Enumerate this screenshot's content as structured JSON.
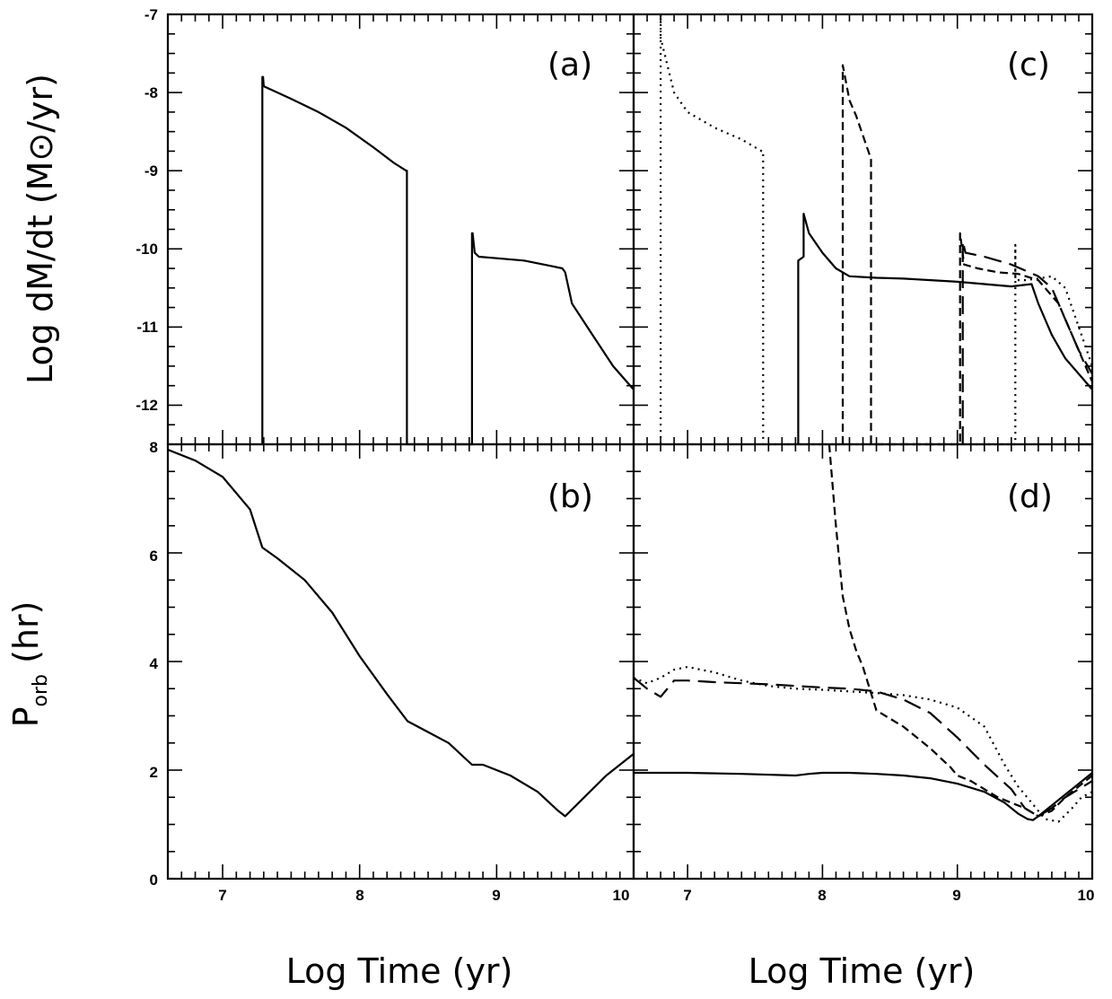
{
  "chart_data": [
    {
      "type": "line",
      "panel": "a",
      "label": "(a)",
      "xlim": [
        6.6,
        10
      ],
      "ylim": [
        -12.5,
        -7
      ],
      "series": [
        {
          "name": "solid",
          "style": "solid",
          "x": [
            7.29,
            7.29,
            7.295,
            7.3,
            7.5,
            7.7,
            7.9,
            8.1,
            8.25,
            8.34,
            8.345,
            8.345,
            8.82,
            8.82,
            8.825,
            8.84,
            8.87,
            9.0,
            9.2,
            9.4,
            9.48,
            9.5,
            9.55,
            9.7,
            9.85,
            10.0
          ],
          "y": [
            -12.5,
            -7.8,
            -7.8,
            -7.92,
            -8.08,
            -8.25,
            -8.45,
            -8.7,
            -8.9,
            -9.0,
            -9.0,
            -12.5,
            -12.5,
            -9.8,
            -9.8,
            -10.05,
            -10.1,
            -10.12,
            -10.15,
            -10.22,
            -10.25,
            -10.3,
            -10.7,
            -11.1,
            -11.5,
            -11.8
          ]
        }
      ]
    },
    {
      "type": "line",
      "panel": "b",
      "label": "(b)",
      "xlim": [
        6.6,
        10
      ],
      "ylim": [
        0,
        8
      ],
      "series": [
        {
          "name": "solid",
          "style": "solid",
          "x": [
            6.6,
            6.8,
            7.0,
            7.2,
            7.29,
            7.4,
            7.6,
            7.8,
            8.0,
            8.2,
            8.35,
            8.5,
            8.65,
            8.82,
            8.9,
            9.1,
            9.3,
            9.45,
            9.5,
            9.6,
            9.8,
            10.0
          ],
          "y": [
            7.9,
            7.7,
            7.4,
            6.8,
            6.1,
            5.9,
            5.5,
            4.9,
            4.1,
            3.4,
            2.9,
            2.7,
            2.5,
            2.1,
            2.1,
            1.9,
            1.6,
            1.25,
            1.15,
            1.4,
            1.9,
            2.3
          ]
        }
      ]
    },
    {
      "type": "line",
      "panel": "c",
      "label": "(c)",
      "xlim": [
        6.6,
        10
      ],
      "ylim": [
        -12.5,
        -7
      ],
      "series": [
        {
          "name": "dotted",
          "style": "dotted",
          "x": [
            6.8,
            6.8,
            6.8,
            6.9,
            7.0,
            7.2,
            7.4,
            7.55,
            7.56,
            7.56,
            9.43,
            9.43,
            9.43,
            9.5,
            9.6,
            9.7,
            9.8,
            9.9,
            10.0
          ],
          "y": [
            -12.5,
            -7.0,
            -7.3,
            -8.0,
            -8.25,
            -8.45,
            -8.6,
            -8.75,
            -8.75,
            -12.5,
            -12.5,
            -9.95,
            -10.4,
            -10.4,
            -10.38,
            -10.35,
            -10.5,
            -11.0,
            -11.5
          ]
        },
        {
          "name": "short dashed",
          "style": "short-dash",
          "x": [
            8.15,
            8.15,
            8.2,
            8.25,
            8.3,
            8.35,
            8.36,
            8.36,
            9.02,
            9.02,
            9.05,
            9.15,
            9.3,
            9.45,
            9.6,
            9.75,
            9.85,
            9.95,
            10.0
          ],
          "y": [
            -12.5,
            -7.65,
            -8.1,
            -8.3,
            -8.55,
            -8.8,
            -8.85,
            -12.5,
            -12.5,
            -9.8,
            -10.2,
            -10.25,
            -10.3,
            -10.32,
            -10.4,
            -10.7,
            -11.1,
            -11.5,
            -11.7
          ]
        },
        {
          "name": "solid",
          "style": "solid",
          "x": [
            7.82,
            7.82,
            7.86,
            7.86,
            7.9,
            8.0,
            8.1,
            8.2,
            8.4,
            8.6,
            8.8,
            9.0,
            9.2,
            9.4,
            9.55,
            9.6,
            9.7,
            9.8,
            9.9,
            10.0
          ],
          "y": [
            -12.5,
            -10.15,
            -10.1,
            -9.55,
            -9.8,
            -10.05,
            -10.25,
            -10.35,
            -10.37,
            -10.38,
            -10.4,
            -10.42,
            -10.45,
            -10.48,
            -10.45,
            -10.7,
            -11.1,
            -11.4,
            -11.6,
            -11.8
          ]
        },
        {
          "name": "long dashed",
          "style": "long-dash",
          "x": [
            9.04,
            9.04,
            9.06,
            9.2,
            9.4,
            9.6,
            9.7,
            9.8,
            9.9,
            10.0
          ],
          "y": [
            -12.5,
            -9.9,
            -10.05,
            -10.1,
            -10.2,
            -10.35,
            -10.5,
            -10.9,
            -11.3,
            -11.6
          ]
        }
      ]
    },
    {
      "type": "line",
      "panel": "d",
      "label": "(d)",
      "xlim": [
        6.6,
        10
      ],
      "ylim": [
        0,
        8
      ],
      "series": [
        {
          "name": "short dashed",
          "style": "short-dash",
          "x": [
            8.05,
            8.1,
            8.15,
            8.2,
            8.25,
            8.3,
            8.35,
            8.4,
            8.6,
            8.8,
            8.95,
            9.0,
            9.1,
            9.3,
            9.5,
            9.6,
            9.7,
            9.8,
            9.9,
            10.0
          ],
          "y": [
            8.0,
            6.5,
            5.2,
            4.6,
            4.2,
            3.9,
            3.5,
            3.1,
            2.8,
            2.4,
            2.05,
            1.9,
            1.8,
            1.5,
            1.3,
            1.15,
            1.25,
            1.5,
            1.7,
            1.9
          ]
        },
        {
          "name": "dotted",
          "style": "dotted",
          "x": [
            6.6,
            6.7,
            6.8,
            6.9,
            7.0,
            7.1,
            7.2,
            7.4,
            7.6,
            7.8,
            8.0,
            8.2,
            8.4,
            8.6,
            8.8,
            9.0,
            9.2,
            9.35,
            9.45,
            9.55,
            9.65,
            9.75,
            9.85,
            9.92,
            10.0
          ],
          "y": [
            3.7,
            3.6,
            3.7,
            3.85,
            3.9,
            3.85,
            3.8,
            3.65,
            3.55,
            3.5,
            3.48,
            3.45,
            3.42,
            3.38,
            3.3,
            3.15,
            2.8,
            2.1,
            1.7,
            1.4,
            1.1,
            1.05,
            1.3,
            1.5,
            1.6
          ]
        },
        {
          "name": "long dashed",
          "style": "long-dash",
          "x": [
            6.6,
            6.7,
            6.8,
            6.85,
            6.9,
            7.0,
            7.2,
            7.4,
            7.6,
            7.8,
            8.0,
            8.2,
            8.4,
            8.6,
            8.8,
            9.0,
            9.2,
            9.4,
            9.5,
            9.6,
            9.7,
            9.8,
            9.9,
            10.0
          ],
          "y": [
            3.7,
            3.5,
            3.35,
            3.5,
            3.65,
            3.65,
            3.62,
            3.6,
            3.58,
            3.55,
            3.52,
            3.5,
            3.45,
            3.3,
            3.05,
            2.6,
            2.1,
            1.65,
            1.3,
            1.15,
            1.3,
            1.5,
            1.65,
            1.8
          ]
        },
        {
          "name": "solid",
          "style": "solid",
          "x": [
            6.6,
            7.0,
            7.4,
            7.8,
            7.9,
            8.0,
            8.2,
            8.4,
            8.6,
            8.8,
            9.0,
            9.2,
            9.35,
            9.45,
            9.52,
            9.56,
            9.6,
            9.7,
            9.8,
            9.9,
            10.0
          ],
          "y": [
            1.95,
            1.95,
            1.93,
            1.9,
            1.93,
            1.95,
            1.95,
            1.93,
            1.9,
            1.85,
            1.75,
            1.6,
            1.4,
            1.2,
            1.1,
            1.08,
            1.15,
            1.35,
            1.55,
            1.75,
            1.95
          ]
        }
      ]
    }
  ],
  "axes": {
    "ylabel_top": "Log dM/dt (M⊙/yr)",
    "ylabel_bottom_main": "P",
    "ylabel_bottom_sub": "orb",
    "ylabel_bottom_unit": " (hr)",
    "xlabel_left": "Log Time (yr)",
    "xlabel_right": "Log Time (yr)",
    "x_ticks_left": [
      "7",
      "8",
      "9",
      "10"
    ],
    "x_ticks_right": [
      "7",
      "8",
      "9",
      "10"
    ],
    "y_ticks_top": [
      "-7",
      "-8",
      "-9",
      "-10",
      "-11",
      "-12"
    ],
    "y_ticks_bottom": [
      "8",
      "6",
      "4",
      "2",
      "0"
    ]
  }
}
